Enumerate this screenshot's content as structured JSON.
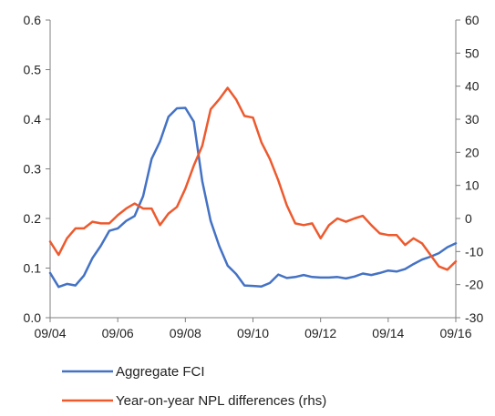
{
  "chart_data": {
    "type": "line",
    "x_tick_labels": [
      "09/04",
      "09/06",
      "09/08",
      "09/10",
      "09/12",
      "09/14",
      "09/16"
    ],
    "y_left": {
      "ticks": [
        "0.0",
        "0.1",
        "0.2",
        "0.3",
        "0.4",
        "0.5",
        "0.6"
      ],
      "ylim": [
        0,
        0.6
      ]
    },
    "y_right": {
      "ticks": [
        "-30",
        "-20",
        "-10",
        "0",
        "10",
        "20",
        "30",
        "40",
        "50",
        "60"
      ],
      "ylim": [
        -30,
        60
      ]
    },
    "xlim": [
      2004.67,
      2016.67
    ],
    "legend_position": "bottom",
    "series": [
      {
        "name": "Aggregate FCI",
        "color": "#4472c4",
        "axis": "left",
        "x": [
          2004.67,
          2004.92,
          2005.17,
          2005.42,
          2005.67,
          2005.92,
          2006.17,
          2006.42,
          2006.67,
          2006.92,
          2007.17,
          2007.42,
          2007.67,
          2007.92,
          2008.17,
          2008.42,
          2008.67,
          2008.92,
          2009.17,
          2009.42,
          2009.67,
          2009.92,
          2010.17,
          2010.42,
          2010.67,
          2010.92,
          2011.17,
          2011.42,
          2011.67,
          2011.92,
          2012.17,
          2012.42,
          2012.67,
          2012.92,
          2013.17,
          2013.42,
          2013.67,
          2013.92,
          2014.17,
          2014.42,
          2014.67,
          2014.92,
          2015.17,
          2015.42,
          2015.67,
          2015.92,
          2016.17,
          2016.42,
          2016.67
        ],
        "y": [
          0.09,
          0.062,
          0.068,
          0.065,
          0.085,
          0.12,
          0.145,
          0.175,
          0.18,
          0.195,
          0.205,
          0.245,
          0.32,
          0.355,
          0.405,
          0.422,
          0.423,
          0.395,
          0.275,
          0.195,
          0.145,
          0.105,
          0.088,
          0.065,
          0.064,
          0.063,
          0.07,
          0.087,
          0.08,
          0.082,
          0.086,
          0.082,
          0.081,
          0.081,
          0.082,
          0.079,
          0.083,
          0.089,
          0.086,
          0.09,
          0.095,
          0.093,
          0.098,
          0.108,
          0.117,
          0.123,
          0.13,
          0.142,
          0.15
        ]
      },
      {
        "name": "Year-on-year NPL differences (rhs)",
        "color": "#ed5a2e",
        "axis": "right",
        "x": [
          2004.67,
          2004.92,
          2005.17,
          2005.42,
          2005.67,
          2005.92,
          2006.17,
          2006.42,
          2006.67,
          2006.92,
          2007.17,
          2007.42,
          2007.67,
          2007.92,
          2008.17,
          2008.42,
          2008.67,
          2008.92,
          2009.17,
          2009.42,
          2009.67,
          2009.92,
          2010.17,
          2010.42,
          2010.67,
          2010.92,
          2011.17,
          2011.42,
          2011.67,
          2011.92,
          2012.17,
          2012.42,
          2012.67,
          2012.92,
          2013.17,
          2013.42,
          2013.67,
          2013.92,
          2014.17,
          2014.42,
          2014.67,
          2014.92,
          2015.17,
          2015.42,
          2015.67,
          2015.92,
          2016.17,
          2016.42,
          2016.67
        ],
        "y": [
          -7,
          -11,
          -6,
          -3,
          -3,
          -1,
          -1.5,
          -1.5,
          1,
          3,
          4.5,
          3,
          3,
          -2,
          1.5,
          3.5,
          9,
          16,
          22,
          33,
          36,
          39.5,
          36,
          31,
          30.5,
          23,
          18,
          11.5,
          4,
          -1.5,
          -2,
          -1.5,
          -6,
          -2,
          0,
          -1,
          0,
          0.8,
          -2,
          -4.5,
          -5,
          -5,
          -8,
          -6,
          -7.5,
          -11,
          -14.5,
          -15.5,
          -13
        ]
      }
    ]
  }
}
